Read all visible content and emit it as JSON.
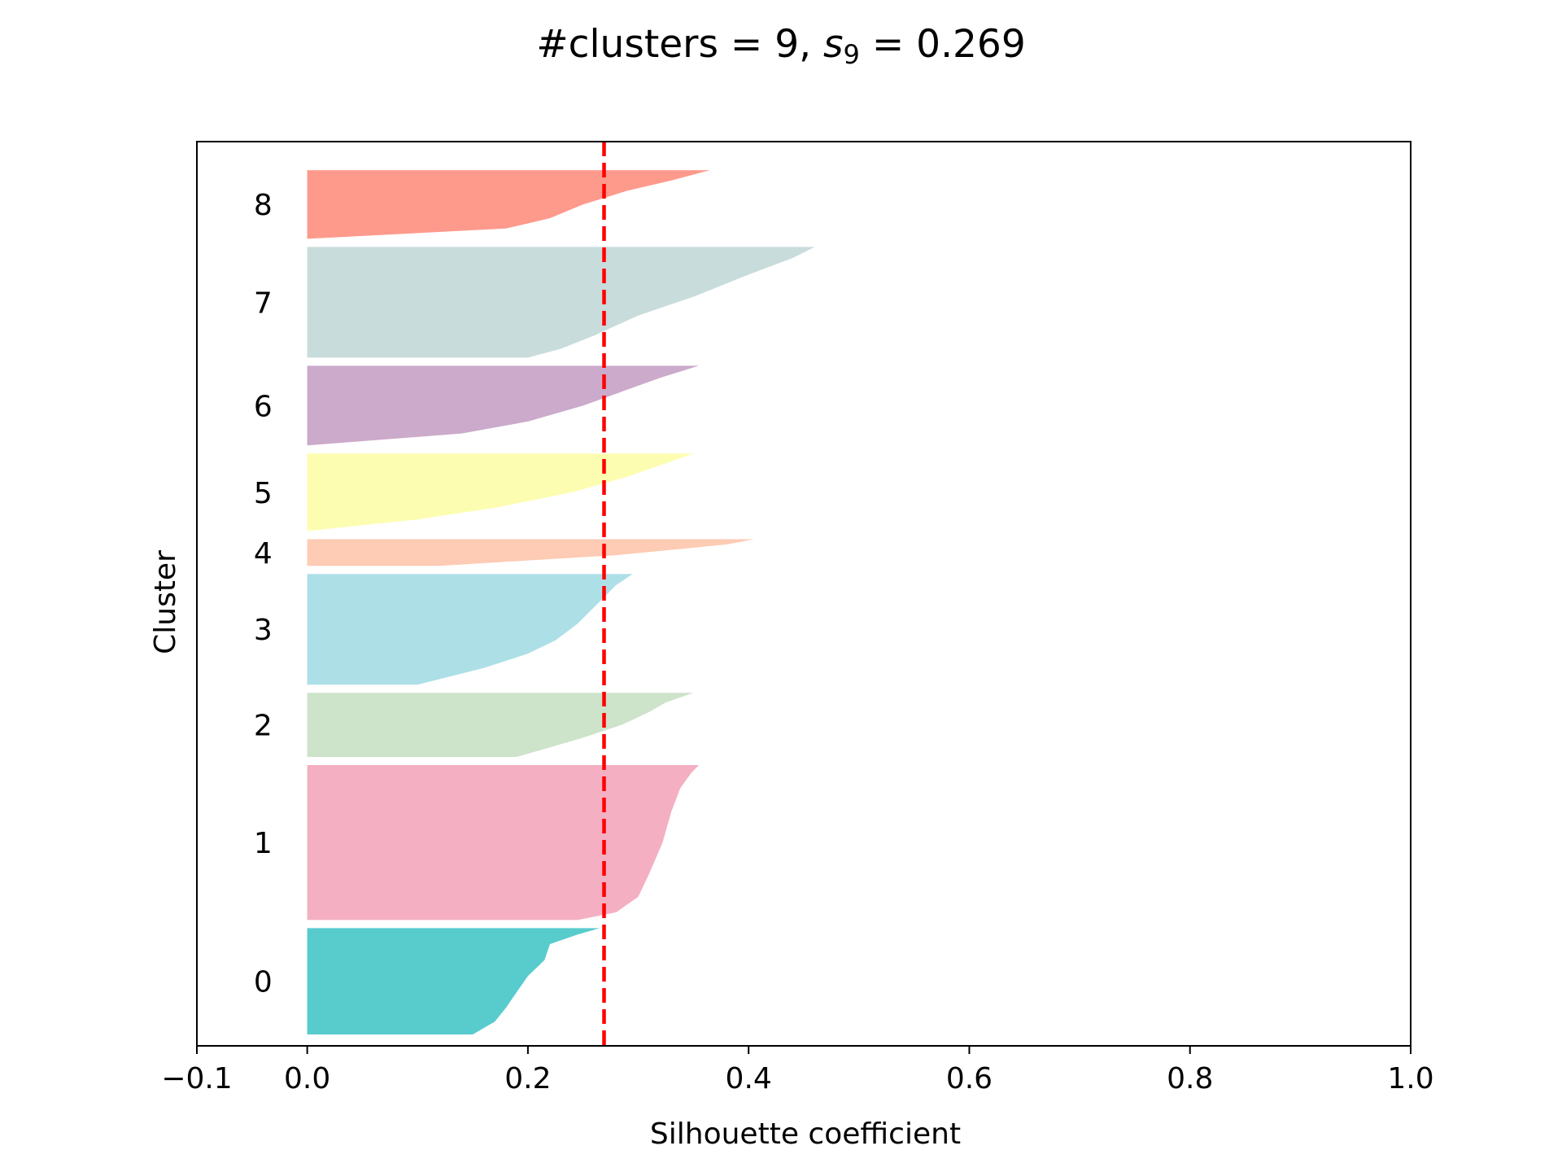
{
  "chart_data": {
    "type": "area",
    "title": "#clusters = 9, s₉ = 0.269",
    "title_parts": {
      "prefix": "#clusters = 9, ",
      "s": "s",
      "sub": "9",
      "suffix": " = 0.269"
    },
    "xlabel": "Silhouette coefficient",
    "ylabel": "Cluster",
    "xlim": [
      -0.1,
      1.0
    ],
    "xticks": [
      -0.1,
      0.0,
      0.2,
      0.4,
      0.6,
      0.8,
      1.0
    ],
    "xtick_labels": [
      "−0.1",
      "0.0",
      "0.2",
      "0.4",
      "0.6",
      "0.8",
      "1.0"
    ],
    "grid": false,
    "average_silhouette": 0.269,
    "average_line_color": "#ff0000",
    "series": [
      {
        "name": "0",
        "color": "#58cbcd",
        "count": 48,
        "profile": [
          [
            0.0,
            0.265
          ],
          [
            0.06,
            0.245
          ],
          [
            0.15,
            0.22
          ],
          [
            0.3,
            0.215
          ],
          [
            0.45,
            0.2
          ],
          [
            0.6,
            0.19
          ],
          [
            0.75,
            0.18
          ],
          [
            0.88,
            0.17
          ],
          [
            1.0,
            0.15
          ]
        ]
      },
      {
        "name": "1",
        "color": "#f4afc2",
        "count": 70,
        "profile": [
          [
            0.0,
            0.355
          ],
          [
            0.05,
            0.348
          ],
          [
            0.15,
            0.338
          ],
          [
            0.3,
            0.33
          ],
          [
            0.5,
            0.322
          ],
          [
            0.7,
            0.31
          ],
          [
            0.85,
            0.3
          ],
          [
            0.95,
            0.28
          ],
          [
            1.0,
            0.245
          ]
        ]
      },
      {
        "name": "2",
        "color": "#cde3ca",
        "count": 29,
        "profile": [
          [
            0.0,
            0.35
          ],
          [
            0.15,
            0.325
          ],
          [
            0.3,
            0.31
          ],
          [
            0.5,
            0.285
          ],
          [
            0.7,
            0.25
          ],
          [
            0.85,
            0.22
          ],
          [
            1.0,
            0.19
          ]
        ]
      },
      {
        "name": "3",
        "color": "#addfe7",
        "count": 50,
        "profile": [
          [
            0.0,
            0.295
          ],
          [
            0.1,
            0.28
          ],
          [
            0.25,
            0.265
          ],
          [
            0.45,
            0.245
          ],
          [
            0.6,
            0.225
          ],
          [
            0.72,
            0.2
          ],
          [
            0.85,
            0.16
          ],
          [
            1.0,
            0.1
          ]
        ]
      },
      {
        "name": "4",
        "color": "#fecbb4",
        "count": 12,
        "profile": [
          [
            0.0,
            0.405
          ],
          [
            0.2,
            0.38
          ],
          [
            0.4,
            0.33
          ],
          [
            0.6,
            0.28
          ],
          [
            0.8,
            0.2
          ],
          [
            1.0,
            0.12
          ]
        ]
      },
      {
        "name": "5",
        "color": "#fdfdb2",
        "count": 35,
        "profile": [
          [
            0.0,
            0.35
          ],
          [
            0.15,
            0.32
          ],
          [
            0.3,
            0.29
          ],
          [
            0.5,
            0.24
          ],
          [
            0.7,
            0.17
          ],
          [
            0.85,
            0.1
          ],
          [
            1.0,
            0.0
          ]
        ]
      },
      {
        "name": "6",
        "color": "#cbaacb",
        "count": 36,
        "profile": [
          [
            0.0,
            0.355
          ],
          [
            0.15,
            0.32
          ],
          [
            0.3,
            0.29
          ],
          [
            0.5,
            0.25
          ],
          [
            0.7,
            0.2
          ],
          [
            0.85,
            0.14
          ],
          [
            1.0,
            0.0
          ]
        ]
      },
      {
        "name": "7",
        "color": "#c8dcdb",
        "count": 50,
        "profile": [
          [
            0.0,
            0.46
          ],
          [
            0.1,
            0.44
          ],
          [
            0.25,
            0.4
          ],
          [
            0.45,
            0.35
          ],
          [
            0.62,
            0.3
          ],
          [
            0.8,
            0.26
          ],
          [
            0.92,
            0.23
          ],
          [
            1.0,
            0.2
          ]
        ]
      },
      {
        "name": "8",
        "color": "#fe9a8c",
        "count": 31,
        "profile": [
          [
            0.0,
            0.365
          ],
          [
            0.15,
            0.33
          ],
          [
            0.3,
            0.29
          ],
          [
            0.5,
            0.25
          ],
          [
            0.7,
            0.22
          ],
          [
            0.85,
            0.18
          ],
          [
            1.0,
            0.0
          ]
        ]
      }
    ]
  }
}
